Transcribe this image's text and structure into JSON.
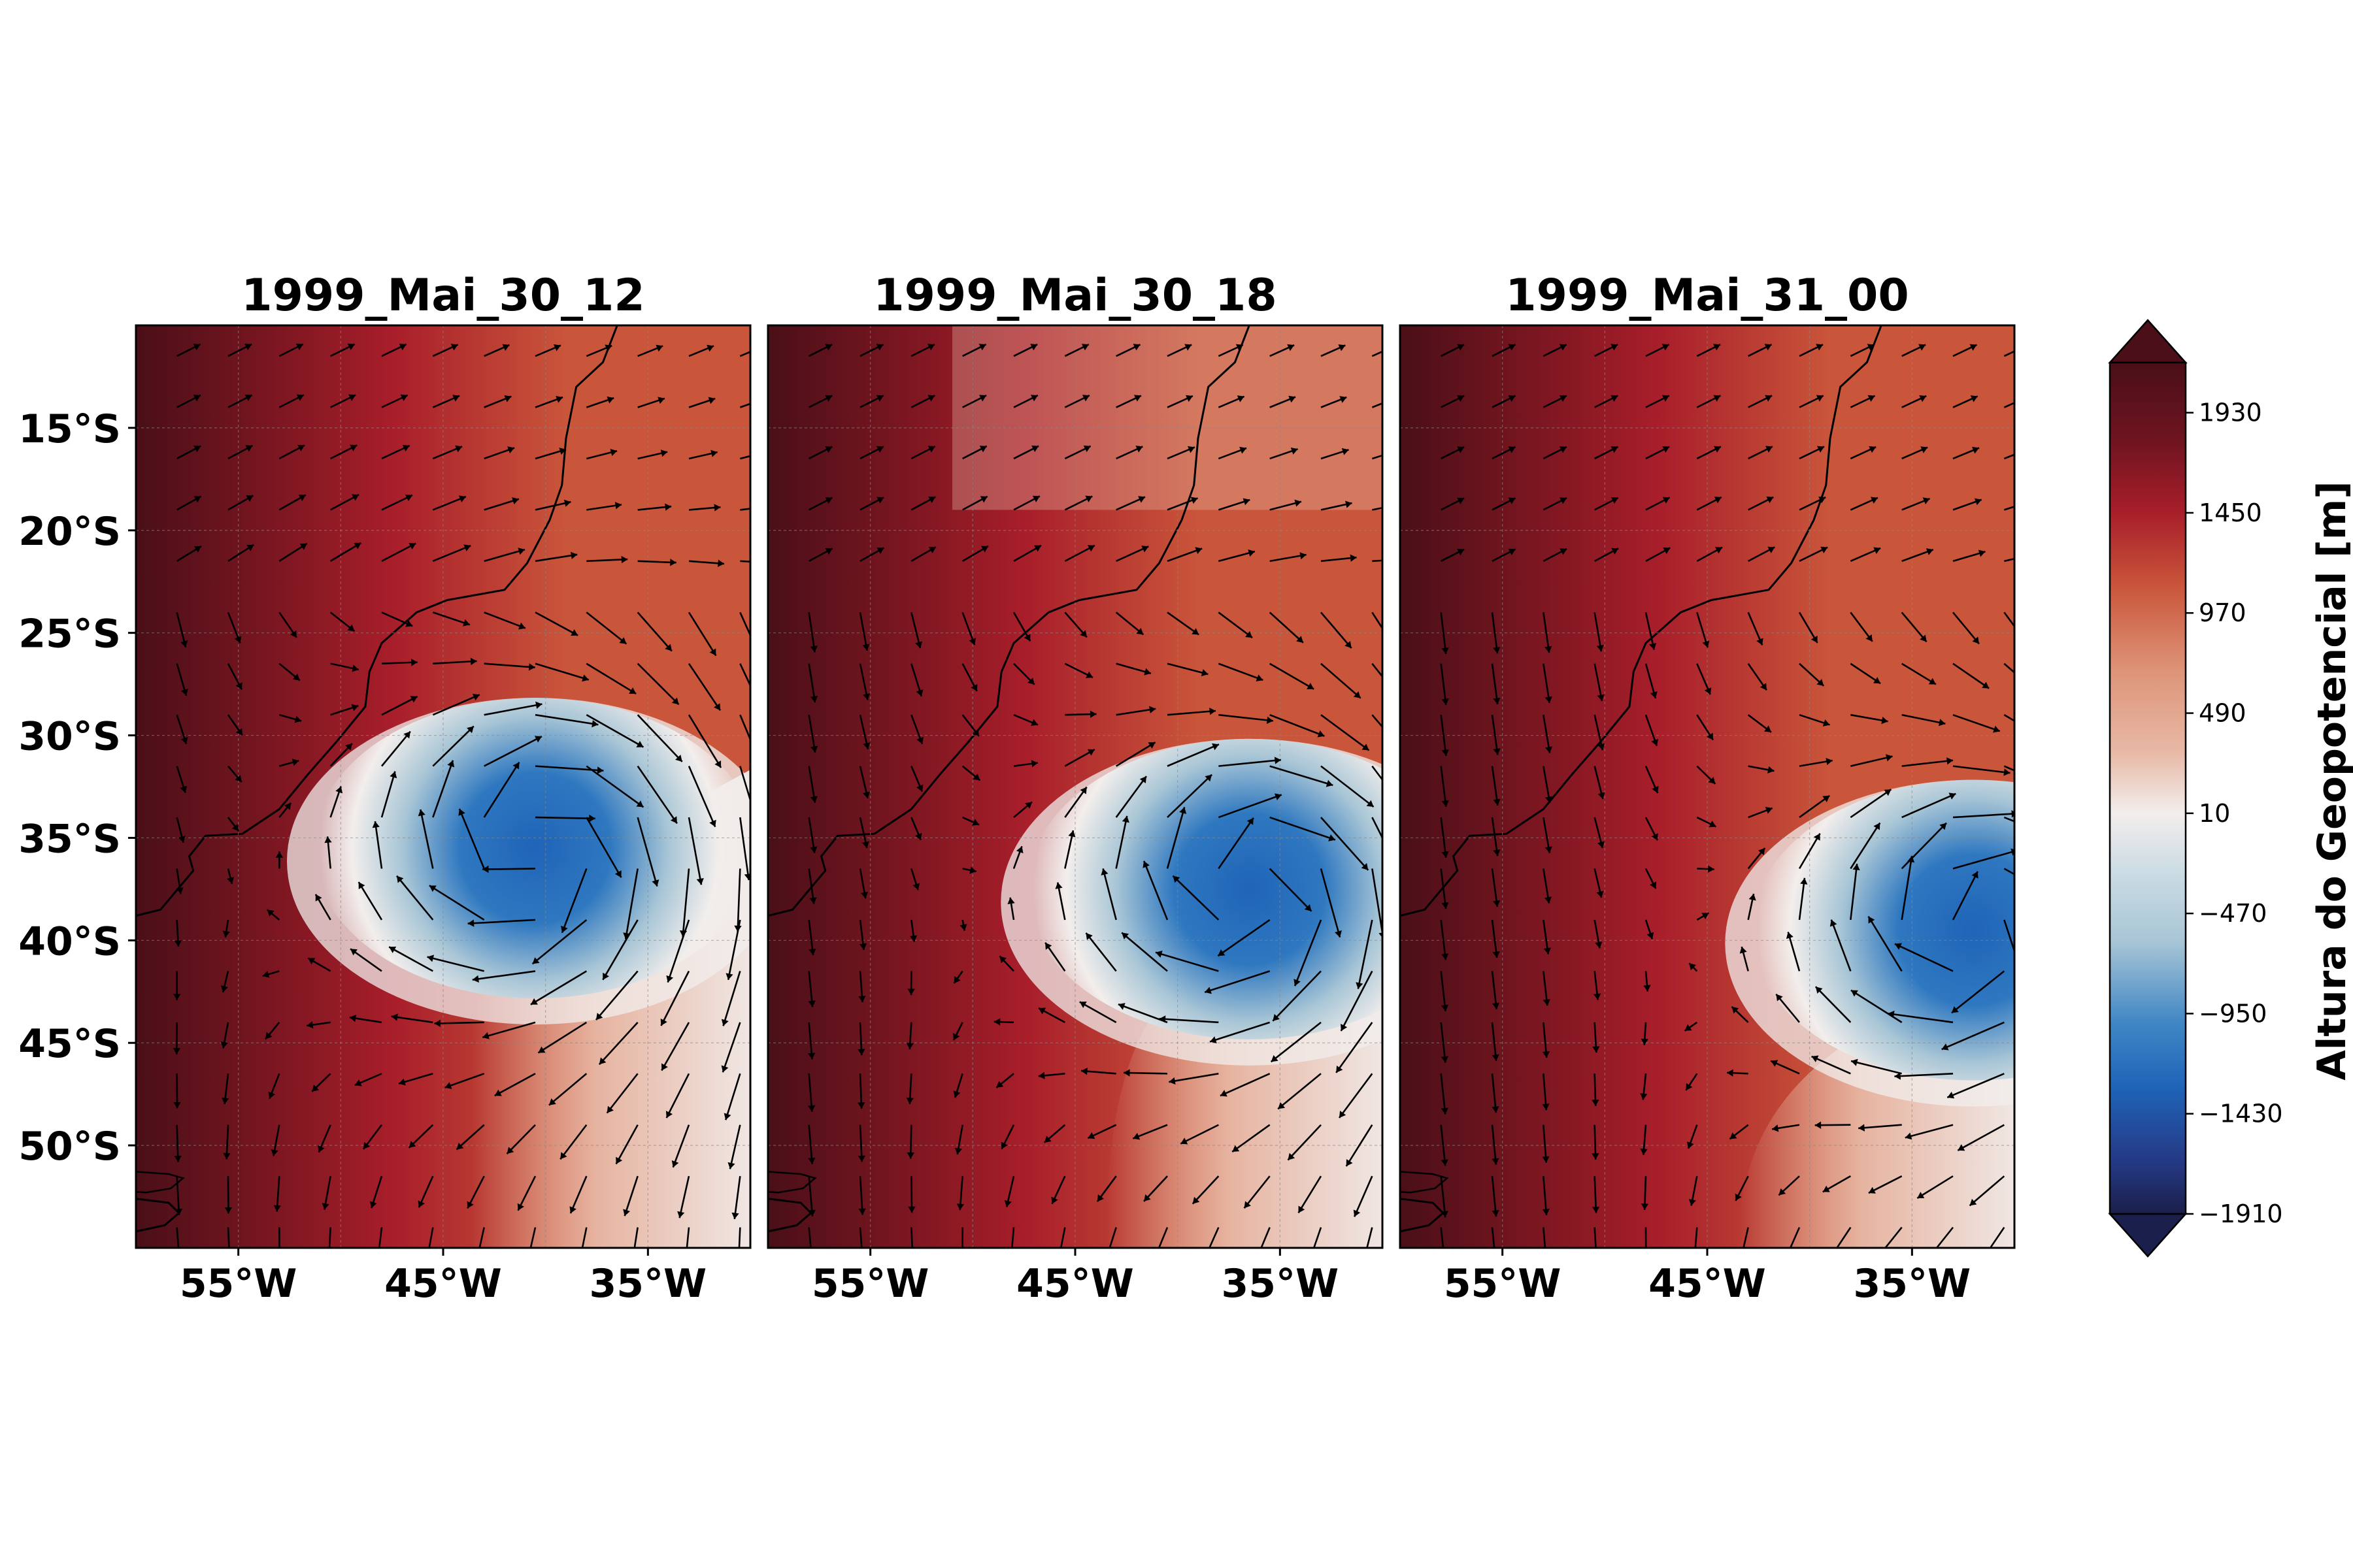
{
  "panels": [
    {
      "title": "1999_Mai_30_12",
      "low": {
        "lon": -40.5,
        "lat": -35.5
      }
    },
    {
      "title": "1999_Mai_30_18",
      "low": {
        "lon": -36.5,
        "lat": -37.5
      }
    },
    {
      "title": "1999_Mai_31_00",
      "low": {
        "lon": -32.0,
        "lat": -39.5
      }
    }
  ],
  "map": {
    "lon_range": [
      -60,
      -30
    ],
    "lat_range": [
      -55,
      -10
    ],
    "lat_ticks": [
      "15°S",
      "20°S",
      "25°S",
      "30°S",
      "35°S",
      "40°S",
      "45°S",
      "50°S"
    ],
    "lat_tick_values": [
      -15,
      -20,
      -25,
      -30,
      -35,
      -40,
      -45,
      -50
    ],
    "lon_ticks": [
      "55°W",
      "45°W",
      "35°W"
    ],
    "lon_tick_values": [
      -55,
      -45,
      -35
    ]
  },
  "colorbar": {
    "label": "Altura do Geopotencial [m]",
    "ticks": [
      "1930",
      "1450",
      "970",
      "490",
      "10",
      "−470",
      "−950",
      "−1430",
      "−1910"
    ],
    "tick_values": [
      1930,
      1450,
      970,
      490,
      10,
      -470,
      -950,
      -1430,
      -1910
    ],
    "range": [
      -1910,
      2170
    ],
    "colors": {
      "max": "#4a0f18",
      "high": "#a81e2a",
      "mid_high": "#c9553a",
      "low_high": "#e8b9a6",
      "zero": "#f2eeec",
      "low_low": "#a9c6d6",
      "mid_low": "#1f64b8",
      "min": "#1b1f4b"
    }
  }
}
